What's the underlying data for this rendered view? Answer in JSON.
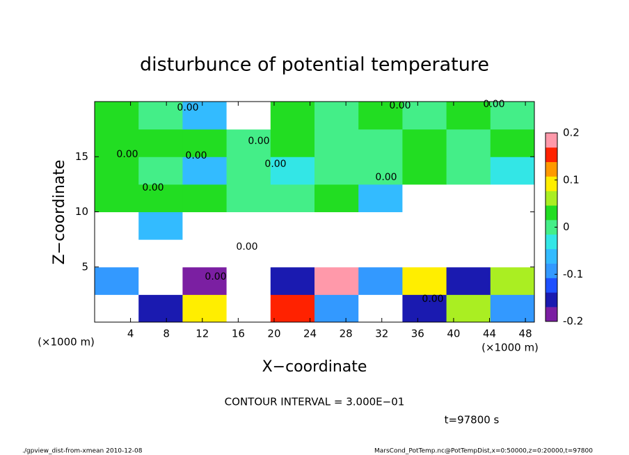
{
  "chart_data": {
    "type": "contour",
    "title": "disturbunce of potential temperature",
    "x_label": "X−coordinate",
    "y_label": "Z−coordinate",
    "x_unit": "(×1000 m)",
    "y_unit": "(×1000 m)",
    "contour_interval": "CONTOUR INTERVAL = 3.000E−01",
    "time": "t=97800 s",
    "footer_left": "./gpview_dist-from-xmean  2010-12-08",
    "footer_right": "MarsCond_PotTemp.nc@PotTempDist,x=0:50000,z=0:20000,t=97800",
    "contour_labels": [
      "0.00",
      "0.00",
      "0.00",
      "0.00",
      "0.00",
      "0.00",
      "0.00",
      "0.00",
      "0.00",
      "0.00",
      "0.00",
      "0.00"
    ],
    "xlim": [
      0,
      49
    ],
    "ylim": [
      0,
      20
    ],
    "xticks": [
      4,
      8,
      12,
      16,
      20,
      24,
      28,
      32,
      36,
      40,
      44,
      48
    ],
    "yticks": [
      5,
      10,
      15
    ],
    "zlim": [
      -0.2,
      0.2
    ],
    "zticks": [
      0.2,
      0.1,
      0,
      -0.1,
      -0.2
    ],
    "colorscale": [
      "#7b1fa2",
      "#1a1ab0",
      "#1e50ff",
      "#3399ff",
      "#33bbff",
      "#33e6e6",
      "#44ee88",
      "#22dd22",
      "#aaee22",
      "#ffee00",
      "#ff9900",
      "#ff2200",
      "#ff99aa"
    ],
    "out_of_range_color": "#ffffff",
    "z": [
      [
        0.25,
        -0.15,
        0.1,
        -0.25,
        0.15,
        -0.1,
        0.25,
        -0.15,
        0.05,
        -0.1
      ],
      [
        -0.1,
        0.25,
        -0.2,
        0.3,
        -0.15,
        0.2,
        -0.1,
        0.1,
        -0.15,
        0.05
      ],
      [
        0.25,
        0.3,
        0.25,
        0.3,
        0.25,
        0.3,
        0.25,
        0.3,
        0.25,
        0.3
      ],
      [
        0.25,
        -0.05,
        0.3,
        0.25,
        0.3,
        0.25,
        0.3,
        0.25,
        0.3,
        0.25
      ],
      [
        0.02,
        0.03,
        0.02,
        0.01,
        0,
        0.02,
        -0.05,
        0.25,
        0.3,
        0.25
      ],
      [
        0.02,
        0,
        -0.05,
        0.01,
        -0.03,
        0,
        0.01,
        0.02,
        0,
        -0.02
      ],
      [
        0.02,
        0.03,
        0.02,
        0.01,
        0.02,
        0,
        0.01,
        0.02,
        0.01,
        0.02
      ],
      [
        0.02,
        0.01,
        -0.05,
        0.3,
        0.02,
        0.01,
        0.02,
        0.01,
        0.02,
        0.01
      ]
    ]
  }
}
